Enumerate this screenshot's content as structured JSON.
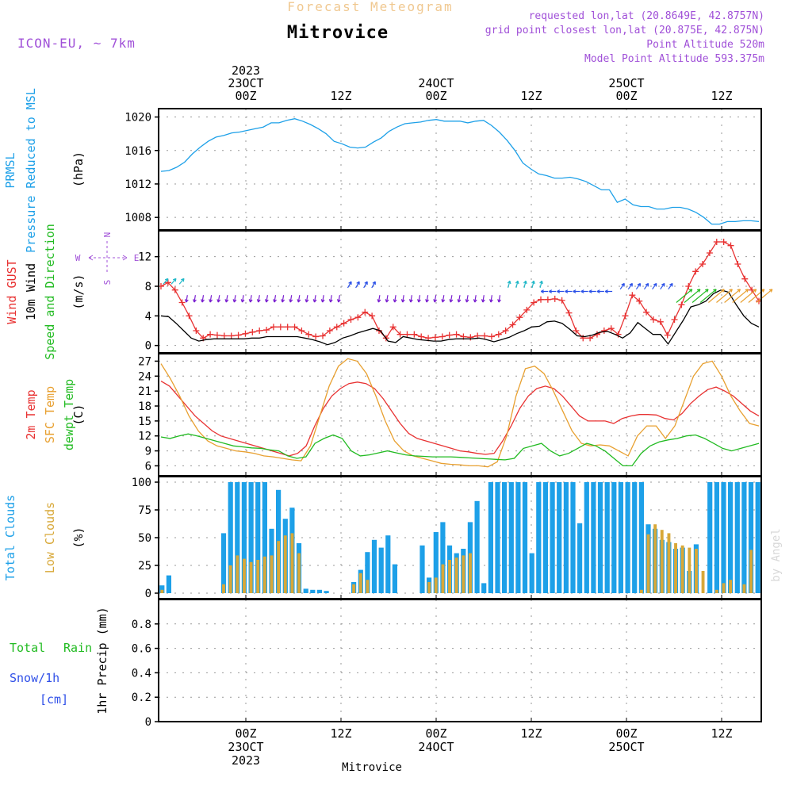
{
  "header": {
    "top_title": "Forecast Meteogram",
    "location": "Mitrovice",
    "model": "ICON-EU, ~ 7km",
    "requested": "requested lon,lat (20.8649E, 42.8757N)",
    "grid_point": "grid point closest lon,lat (20.875E, 42.875N)",
    "point_altitude": "Point Altitude 520m",
    "model_altitude": "Model Point Altitude 593.375m",
    "footer_location": "Mitrovice",
    "watermark": "by Angel"
  },
  "time_axis": {
    "top_labels": [
      {
        "lines": [
          "2023",
          "23OCT",
          "00Z"
        ],
        "hour": 0
      },
      {
        "lines": [
          "12Z"
        ],
        "hour": 12
      },
      {
        "lines": [
          "24OCT",
          "00Z"
        ],
        "hour": 24
      },
      {
        "lines": [
          "12Z"
        ],
        "hour": 36
      },
      {
        "lines": [
          "25OCT",
          "00Z"
        ],
        "hour": 48
      },
      {
        "lines": [
          "12Z"
        ],
        "hour": 60
      }
    ],
    "bottom_labels": [
      {
        "lines": [
          "00Z",
          "23OCT",
          "2023"
        ],
        "hour": 0
      },
      {
        "lines": [
          "12Z"
        ],
        "hour": 12
      },
      {
        "lines": [
          "00Z",
          "24OCT"
        ],
        "hour": 24
      },
      {
        "lines": [
          "12Z"
        ],
        "hour": 36
      },
      {
        "lines": [
          "00Z",
          "25OCT"
        ],
        "hour": 48
      },
      {
        "lines": [
          "12Z"
        ],
        "hour": 60
      }
    ],
    "range_hours": [
      -11,
      65
    ]
  },
  "chart_data": [
    {
      "type": "line",
      "panel": "pressure",
      "side_labels": [
        {
          "text": "PRMSL",
          "color": "#1da0e8"
        },
        {
          "text": "Pressure Reduced to MSL",
          "color": "#1da0e8"
        }
      ],
      "unit": "(hPa)",
      "ylim": [
        1006.5,
        1021
      ],
      "yticks": [
        1008,
        1012,
        1016,
        1020
      ],
      "series": [
        {
          "color": "#1da0e8",
          "values": [
            1013.5,
            1013.6,
            1014.0,
            1014.6,
            1015.6,
            1016.4,
            1017.1,
            1017.6,
            1017.8,
            1018.1,
            1018.2,
            1018.4,
            1018.6,
            1018.8,
            1019.3,
            1019.3,
            1019.6,
            1019.8,
            1019.5,
            1019.1,
            1018.6,
            1018.0,
            1017.1,
            1016.8,
            1016.4,
            1016.3,
            1016.4,
            1017.0,
            1017.5,
            1018.3,
            1018.8,
            1019.2,
            1019.3,
            1019.4,
            1019.6,
            1019.7,
            1019.5,
            1019.5,
            1019.5,
            1019.3,
            1019.5,
            1019.6,
            1019.0,
            1018.2,
            1017.2,
            1016.0,
            1014.5,
            1013.8,
            1013.2,
            1013.0,
            1012.7,
            1012.7,
            1012.8,
            1012.6,
            1012.3,
            1011.8,
            1011.3,
            1011.3,
            1009.8,
            1010.2,
            1009.5,
            1009.3,
            1009.3,
            1009.0,
            1009.0,
            1009.2,
            1009.2,
            1009.0,
            1008.6,
            1008.0,
            1007.2,
            1007.2,
            1007.5,
            1007.5,
            1007.6,
            1007.6,
            1007.5
          ]
        }
      ]
    },
    {
      "type": "line",
      "panel": "wind",
      "side_labels": [
        {
          "text": "Wind GUST",
          "color": "#e83232"
        },
        {
          "text": "10m Wind",
          "color": "#000000"
        },
        {
          "text": "Speed and Direction",
          "color": "#22bb22"
        }
      ],
      "unit": "(m/s)",
      "compass": {
        "w": "W",
        "e": "E",
        "n": "N",
        "s": "S",
        "color": "#a050d8"
      },
      "ylim": [
        -1,
        15.5
      ],
      "yticks": [
        0,
        4,
        8,
        12
      ],
      "series": [
        {
          "name": "Wind GUST",
          "color": "#e83232",
          "marker": "+",
          "values": [
            8.0,
            8.5,
            7.5,
            5.8,
            4.0,
            2.0,
            1.0,
            1.5,
            1.4,
            1.3,
            1.3,
            1.4,
            1.6,
            1.8,
            2.0,
            2.1,
            2.5,
            2.5,
            2.5,
            2.5,
            2.0,
            1.5,
            1.2,
            1.3,
            2.0,
            2.5,
            3.0,
            3.5,
            3.8,
            4.5,
            4.0,
            2.0,
            1.0,
            2.5,
            1.5,
            1.5,
            1.5,
            1.2,
            1.0,
            1.1,
            1.2,
            1.4,
            1.5,
            1.2,
            1.1,
            1.3,
            1.3,
            1.2,
            1.5,
            2.0,
            2.8,
            3.8,
            4.8,
            5.8,
            6.2,
            6.2,
            6.3,
            6.1,
            4.4,
            2.0,
            1.0,
            1.0,
            1.5,
            2.0,
            2.3,
            1.5,
            4.0,
            6.8,
            6.0,
            4.5,
            3.5,
            3.2,
            1.4,
            3.5,
            5.5,
            8.0,
            10.0,
            11.0,
            12.5,
            14.0,
            14.0,
            13.5,
            11.0,
            9.0,
            7.5,
            6.0
          ]
        },
        {
          "name": "10m Wind",
          "color": "#000000",
          "values": [
            4.0,
            3.9,
            3.0,
            2.0,
            1.0,
            0.6,
            0.8,
            0.9,
            0.9,
            0.9,
            0.9,
            0.9,
            1.0,
            1.0,
            1.2,
            1.2,
            1.2,
            1.2,
            1.2,
            1.0,
            0.8,
            0.5,
            0.1,
            0.4,
            1.0,
            1.3,
            1.7,
            2.0,
            2.3,
            2.0,
            0.6,
            0.4,
            1.2,
            1.0,
            0.8,
            0.7,
            0.6,
            0.6,
            0.8,
            0.9,
            0.9,
            0.9,
            1.0,
            0.8,
            0.5,
            0.8,
            1.1,
            1.6,
            2.0,
            2.5,
            2.6,
            3.2,
            3.3,
            3.0,
            2.2,
            1.3,
            1.2,
            1.4,
            1.8,
            1.9,
            1.5,
            1.0,
            1.7,
            3.1,
            2.3,
            1.5,
            1.5,
            0.2,
            1.8,
            3.4,
            5.2,
            5.5,
            6.0,
            7.0,
            7.5,
            7.2,
            5.5,
            4.0,
            3.0,
            2.5
          ]
        },
        {
          "name": "Speed and Direction",
          "color": "#22bb22",
          "arrow_colors": [
            "#7a1fd0",
            "#2a50e8",
            "#1fb8c8",
            "#22bb22",
            "#e8a030"
          ]
        }
      ]
    },
    {
      "type": "line",
      "panel": "temperature",
      "side_labels": [
        {
          "text": "2m Temp",
          "color": "#e83232"
        },
        {
          "text": "SFC Temp",
          "color": "#e8a030"
        },
        {
          "text": "dewpt Temp",
          "color": "#22bb22"
        }
      ],
      "unit": "(C)",
      "ylim": [
        4,
        28.5
      ],
      "yticks": [
        6,
        9,
        12,
        15,
        18,
        21,
        24,
        27
      ],
      "series": [
        {
          "name": "2m Temp",
          "color": "#e83232",
          "values": [
            23.0,
            22.0,
            20.0,
            18.0,
            16.0,
            14.5,
            13.0,
            12.0,
            11.5,
            11.0,
            10.5,
            10.0,
            9.5,
            9.0,
            8.5,
            8.0,
            8.5,
            10.0,
            14.0,
            17.5,
            20.0,
            21.5,
            22.5,
            22.8,
            22.5,
            21.5,
            19.5,
            17.0,
            14.5,
            12.5,
            11.5,
            11.0,
            10.5,
            10.0,
            9.5,
            9.0,
            8.8,
            8.5,
            8.3,
            8.5,
            11.0,
            14.0,
            17.5,
            20.0,
            21.5,
            22.0,
            21.5,
            20.0,
            18.0,
            16.0,
            15.0,
            15.0,
            15.0,
            14.5,
            15.5,
            16.0,
            16.3,
            16.3,
            16.2,
            15.5,
            15.2,
            16.5,
            18.5,
            20.0,
            21.3,
            21.8,
            21.0,
            20.0,
            18.5,
            17.0,
            16.0
          ]
        },
        {
          "name": "SFC Temp",
          "color": "#e8a030",
          "values": [
            26.5,
            23.5,
            20.0,
            16.0,
            13.0,
            11.0,
            10.0,
            9.5,
            9.0,
            8.8,
            8.5,
            8.0,
            7.8,
            7.5,
            7.2,
            7.0,
            10.0,
            16.0,
            22.0,
            26.0,
            27.5,
            27.0,
            24.5,
            20.0,
            15.0,
            11.0,
            9.0,
            8.0,
            7.5,
            7.0,
            6.5,
            6.3,
            6.2,
            6.0,
            6.0,
            5.8,
            6.8,
            12.0,
            20.0,
            25.5,
            26.0,
            24.5,
            21.0,
            17.0,
            13.0,
            10.5,
            10.0,
            10.2,
            10.0,
            9.0,
            8.0,
            12.0,
            14.0,
            14.0,
            11.5,
            14.0,
            19.0,
            24.0,
            26.5,
            27.0,
            24.0,
            20.0,
            17.0,
            14.5,
            14.0
          ]
        },
        {
          "name": "dewpt Temp",
          "color": "#22bb22",
          "values": [
            11.8,
            11.5,
            12.0,
            12.4,
            12.0,
            11.5,
            11.0,
            10.5,
            10.0,
            9.8,
            9.6,
            9.5,
            9.2,
            9.0,
            8.0,
            7.5,
            7.8,
            10.5,
            11.5,
            12.2,
            11.5,
            9.0,
            8.0,
            8.2,
            8.6,
            9.0,
            8.6,
            8.2,
            8.0,
            7.9,
            7.8,
            7.8,
            7.8,
            7.7,
            7.6,
            7.5,
            7.4,
            7.3,
            7.2,
            7.5,
            9.5,
            10.0,
            10.5,
            9.0,
            8.0,
            8.5,
            9.5,
            10.5,
            10.0,
            9.0,
            7.5,
            6.0,
            6.0,
            8.5,
            10.0,
            10.8,
            11.2,
            11.5,
            12.0,
            12.2,
            11.5,
            10.5,
            9.5,
            9.0,
            9.5,
            10.0,
            10.5
          ]
        }
      ]
    },
    {
      "type": "bar",
      "panel": "clouds",
      "side_labels": [
        {
          "text": "Total Clouds",
          "color": "#1da0e8"
        },
        {
          "text": "Low Clouds",
          "color": "#d8a838"
        }
      ],
      "unit": "(%)",
      "ylim": [
        -5,
        105
      ],
      "yticks": [
        0,
        25,
        50,
        75,
        100
      ],
      "series": [
        {
          "name": "Total Clouds",
          "color": "#1da0e8",
          "values": [
            7,
            16,
            0,
            0,
            0,
            0,
            0,
            0,
            0,
            54,
            100,
            100,
            100,
            100,
            100,
            100,
            58,
            93,
            67,
            77,
            45,
            4,
            3,
            3,
            2,
            0,
            0,
            0,
            10,
            21,
            37,
            48,
            41,
            52,
            26,
            0,
            0,
            0,
            43,
            14,
            55,
            64,
            43,
            36,
            40,
            64,
            83,
            9,
            100,
            100,
            100,
            100,
            100,
            100,
            36,
            100,
            100,
            100,
            100,
            100,
            100,
            63,
            100,
            100,
            100,
            100,
            100,
            100,
            100,
            100,
            100,
            62,
            58,
            48,
            46,
            40,
            41,
            20,
            44,
            0,
            100,
            100,
            100,
            100,
            100,
            100,
            100,
            100
          ]
        },
        {
          "name": "Low Clouds",
          "color": "#d8a838",
          "values": [
            3,
            0,
            0,
            0,
            0,
            0,
            0,
            0,
            0,
            8,
            25,
            34,
            31,
            28,
            30,
            33,
            34,
            47,
            52,
            54,
            36,
            0,
            0,
            0,
            0,
            0,
            0,
            0,
            8,
            18,
            12,
            0,
            0,
            0,
            0,
            0,
            0,
            0,
            0,
            10,
            14,
            26,
            30,
            32,
            34,
            36,
            0,
            0,
            0,
            0,
            0,
            0,
            0,
            0,
            0,
            0,
            0,
            0,
            0,
            0,
            0,
            0,
            0,
            0,
            0,
            0,
            0,
            0,
            0,
            0,
            3,
            53,
            62,
            57,
            54,
            45,
            43,
            41,
            40,
            20,
            0,
            3,
            9,
            12,
            0,
            8,
            39,
            0
          ]
        }
      ]
    },
    {
      "type": "bar",
      "panel": "precip",
      "side_labels": [
        {
          "text": "Total",
          "color": "#22bb22"
        },
        {
          "text": "Rain",
          "color": "#22bb22"
        },
        {
          "text": "Snow/1h",
          "color": "#3050e8"
        },
        {
          "text": "[cm]",
          "color": "#3050e8"
        }
      ],
      "unit": "1hr Precip (mm)",
      "ylim": [
        0,
        1.0
      ],
      "yticks": [
        0,
        0.2,
        0.4,
        0.6,
        0.8
      ],
      "series": [
        {
          "name": "Total Rain",
          "color": "#22bb22",
          "values": []
        }
      ]
    }
  ]
}
